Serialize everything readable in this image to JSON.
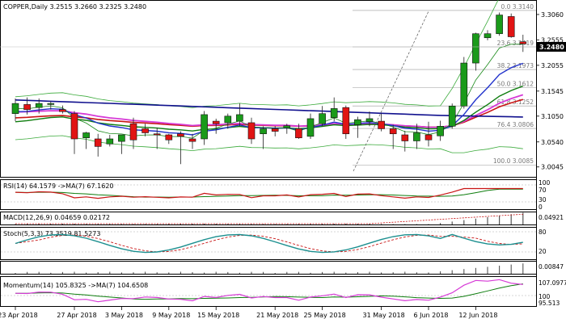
{
  "main": {
    "title": "COPPER,Daily  3.2515  3.2660  3.2325  3.2480",
    "price_tag": "3.2480",
    "y_axis": [
      "3.3060",
      "3.2555",
      "3.2055",
      "3.1545",
      "3.1050",
      "3.0540",
      "3.0045"
    ],
    "fib": [
      {
        "label": "0.0 3.3140",
        "value": 3.314
      },
      {
        "label": "23.6 3.2419",
        "value": 3.2419
      },
      {
        "label": "38.2 3.1973",
        "value": 3.1973
      },
      {
        "label": "50.0 3.1612",
        "value": 3.1612
      },
      {
        "label": "61.8 3.1252",
        "value": 3.1252
      },
      {
        "label": "76.4 3.0806",
        "value": 3.0806
      },
      {
        "label": "100.0 3.0085",
        "value": 3.0085
      }
    ],
    "candles": [
      [
        3.11,
        3.14,
        3.095,
        3.13
      ],
      [
        3.128,
        3.142,
        3.108,
        3.118
      ],
      [
        3.122,
        3.14,
        3.11,
        3.13
      ],
      [
        3.128,
        3.134,
        3.118,
        3.13
      ],
      [
        3.118,
        3.126,
        3.11,
        3.114
      ],
      [
        3.11,
        3.115,
        3.03,
        3.06
      ],
      [
        3.062,
        3.074,
        3.04,
        3.072
      ],
      [
        3.06,
        3.07,
        3.025,
        3.045
      ],
      [
        3.05,
        3.068,
        3.045,
        3.06
      ],
      [
        3.055,
        3.068,
        3.03,
        3.068
      ],
      [
        3.09,
        3.102,
        3.04,
        3.058
      ],
      [
        3.08,
        3.09,
        3.065,
        3.072
      ],
      [
        3.07,
        3.082,
        3.04,
        3.068
      ],
      [
        3.068,
        3.07,
        3.05,
        3.058
      ],
      [
        3.07,
        3.075,
        3.01,
        3.065
      ],
      [
        3.06,
        3.07,
        3.04,
        3.055
      ],
      [
        3.06,
        3.115,
        3.048,
        3.108
      ],
      [
        3.095,
        3.1,
        3.07,
        3.09
      ],
      [
        3.092,
        3.11,
        3.08,
        3.105
      ],
      [
        3.095,
        3.13,
        3.085,
        3.108
      ],
      [
        3.092,
        3.102,
        3.05,
        3.06
      ],
      [
        3.07,
        3.085,
        3.04,
        3.08
      ],
      [
        3.08,
        3.085,
        3.065,
        3.075
      ],
      [
        3.082,
        3.09,
        3.07,
        3.086
      ],
      [
        3.08,
        3.09,
        3.06,
        3.062
      ],
      [
        3.065,
        3.11,
        3.06,
        3.1
      ],
      [
        3.09,
        3.125,
        3.085,
        3.11
      ],
      [
        3.102,
        3.142,
        3.095,
        3.12
      ],
      [
        3.122,
        3.126,
        3.06,
        3.07
      ],
      [
        3.088,
        3.104,
        3.062,
        3.098
      ],
      [
        3.094,
        3.114,
        3.085,
        3.1
      ],
      [
        3.095,
        3.11,
        3.075,
        3.08
      ],
      [
        3.08,
        3.088,
        3.04,
        3.07
      ],
      [
        3.068,
        3.076,
        3.035,
        3.056
      ],
      [
        3.056,
        3.09,
        3.04,
        3.072
      ],
      [
        3.068,
        3.094,
        3.045,
        3.058
      ],
      [
        3.066,
        3.096,
        3.056,
        3.085
      ],
      [
        3.085,
        3.13,
        3.08,
        3.125
      ],
      [
        3.125,
        3.222,
        3.12,
        3.21
      ],
      [
        3.21,
        3.27,
        3.195,
        3.268
      ],
      [
        3.26,
        3.275,
        3.255,
        3.268
      ],
      [
        3.268,
        3.31,
        3.264,
        3.305
      ],
      [
        3.302,
        3.308,
        3.26,
        3.262
      ],
      [
        3.252,
        3.266,
        3.232,
        3.248
      ]
    ],
    "x_labels": [
      "23 Apr 2018",
      "27 Apr 2018",
      "3 May 2018",
      "9 May 2018",
      "15 May 2018",
      "21 May 2018",
      "25 May 2018",
      "31 May 2018",
      "6 Jun 2018",
      "12 Jun 2018"
    ]
  },
  "rsi": {
    "title": "RSI(14) 64.1579  ->MA(7) 67.1620",
    "axis": [
      "100",
      "70",
      "30",
      "0"
    ]
  },
  "macd": {
    "title": "MACD(12,26,9) 0.04659 0.02172",
    "axis": [
      "0.04921",
      "0.00847"
    ]
  },
  "stoch": {
    "title": "Stoch(5,3,3) 73.3519 81.5273",
    "axis": [
      "80",
      "20"
    ]
  },
  "momentum": {
    "title": "Momentum(14) 105.8325  ->MA(7) 104.6508",
    "axis": [
      "107.0977",
      "100",
      "95.513"
    ]
  },
  "colors": {
    "bull": "#1a9a1a",
    "bear": "#e11414",
    "blue_ma": "#10108e",
    "mid_blue": "#2233cc",
    "red_ma": "#c81414",
    "magenta_ma": "#d63ad6",
    "green_ma": "#0e7d0e",
    "bollinger": "#3aaa3a"
  }
}
